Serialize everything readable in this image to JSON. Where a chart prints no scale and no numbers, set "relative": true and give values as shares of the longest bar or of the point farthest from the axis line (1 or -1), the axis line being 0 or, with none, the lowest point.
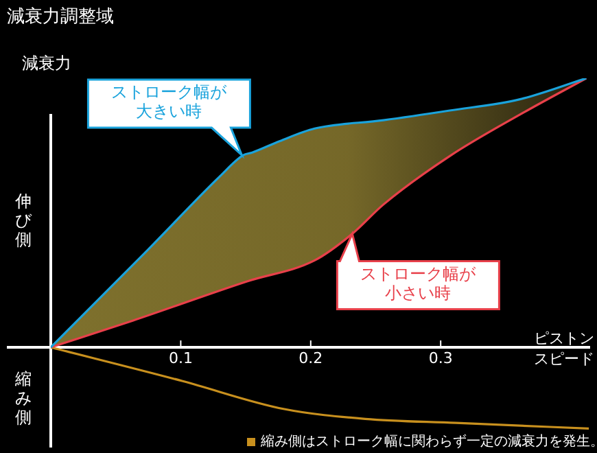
{
  "chart_data": {
    "type": "line",
    "title": "減衰力調整域",
    "ylabel": "減衰力",
    "xlabel": "ピストンスピード",
    "relative": true,
    "xlim": [
      0,
      0.415
    ],
    "xticks": [
      0.1,
      0.2,
      0.3
    ],
    "grid": false,
    "legend": false,
    "marker": "none",
    "line_style": "solid",
    "series": [
      {
        "color": "#1aa3dc",
        "x": [
          0,
          0.074,
          0.13,
          0.148,
          0.155,
          0.176,
          0.203,
          0.256,
          0.307,
          0.361,
          0.412
        ],
        "values": [
          0,
          0.359,
          0.635,
          0.714,
          0.724,
          0.766,
          0.813,
          0.844,
          0.88,
          0.922,
          1
        ]
      },
      {
        "color": "#e8404a",
        "x": [
          0,
          0.063,
          0.151,
          0.203,
          0.232,
          0.256,
          0.308,
          0.361,
          0.412
        ],
        "values": [
          0,
          0.099,
          0.245,
          0.323,
          0.422,
          0.531,
          0.714,
          0.865,
          1
        ]
      },
      {
        "color": "#c8901e",
        "x": [
          0,
          0.101,
          0.179,
          0.242,
          0.312,
          0.414
        ],
        "values": [
          0,
          -0.125,
          -0.229,
          -0.266,
          -0.281,
          -0.302
        ]
      }
    ],
    "annotations": [
      {
        "text": "ストローク幅が大きい時",
        "x": 0.147,
        "y": 0.714
      },
      {
        "text": "ストローク幅が小さい時",
        "x": 0.232,
        "y": 0.422
      },
      "伸び側",
      "縮み側",
      "縮み側はストローク幅に関わらず一定の減衰力を発生。"
    ]
  }
}
